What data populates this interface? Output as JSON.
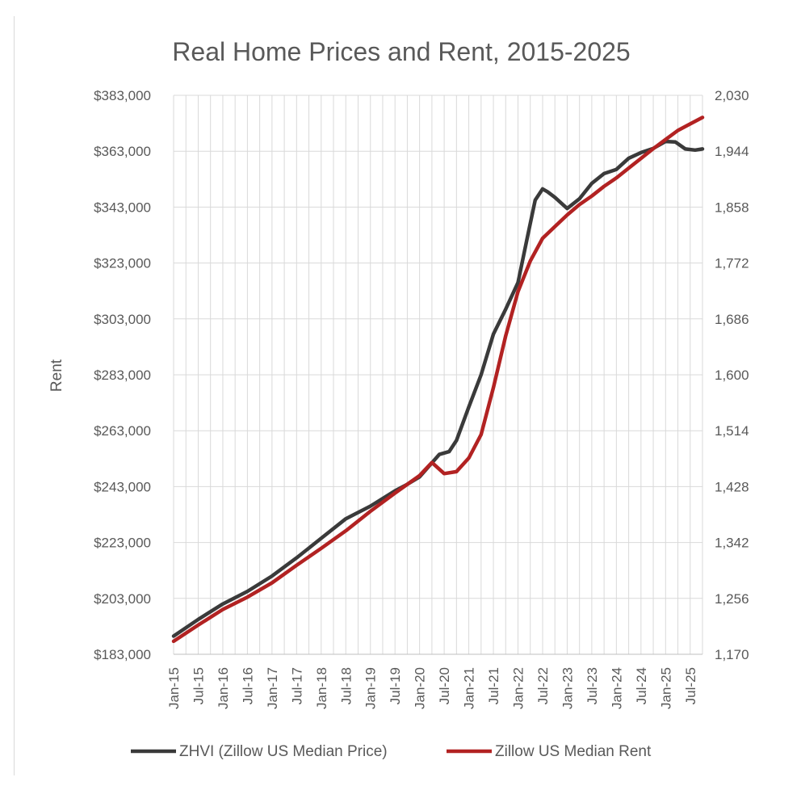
{
  "chart_data": {
    "type": "line",
    "title": "Real Home Prices and Rent, 2015-2025",
    "ylabel": "Rent",
    "y_left": {
      "min": 183000,
      "max": 383000,
      "ticks": [
        183000,
        203000,
        223000,
        243000,
        263000,
        283000,
        303000,
        323000,
        343000,
        363000,
        383000
      ],
      "tick_labels": [
        "$183,000",
        "$203,000",
        "$223,000",
        "$243,000",
        "$263,000",
        "$283,000",
        "$303,000",
        "$323,000",
        "$343,000",
        "$363,000",
        "$383,000"
      ]
    },
    "y_right": {
      "min": 1170,
      "max": 2030,
      "ticks": [
        1170,
        1256,
        1342,
        1428,
        1514,
        1600,
        1686,
        1772,
        1858,
        1944,
        2030
      ],
      "tick_labels": [
        "1,170",
        "1,256",
        "1,342",
        "1,428",
        "1,514",
        "1,600",
        "1,686",
        "1,772",
        "1,858",
        "1,944",
        "2,030"
      ]
    },
    "x_axis": {
      "start": 2015.0,
      "end": 2025.75,
      "tick_positions": [
        2015.0,
        2015.5,
        2016.0,
        2016.5,
        2017.0,
        2017.5,
        2018.0,
        2018.5,
        2019.0,
        2019.5,
        2020.0,
        2020.5,
        2021.0,
        2021.5,
        2022.0,
        2022.5,
        2023.0,
        2023.5,
        2024.0,
        2024.5,
        2025.0,
        2025.5
      ],
      "tick_labels": [
        "Jan-15",
        "Jul-15",
        "Jan-16",
        "Jul-16",
        "Jan-17",
        "Jul-17",
        "Jan-18",
        "Jul-18",
        "Jan-19",
        "Jul-19",
        "Jan-20",
        "Jul-20",
        "Jan-21",
        "Jul-21",
        "Jan-22",
        "Jul-22",
        "Jan-23",
        "Jul-23",
        "Jan-24",
        "Jul-24",
        "Jan-25",
        "Jul-25"
      ]
    },
    "grid": true,
    "legend_position": "bottom",
    "series": [
      {
        "name": "ZHVI (Zillow US Median Price)",
        "axis": "left",
        "color": "#3a3a3a",
        "points": [
          [
            2015.0,
            189500
          ],
          [
            2015.5,
            195500
          ],
          [
            2016.0,
            201000
          ],
          [
            2016.5,
            205500
          ],
          [
            2017.0,
            211000
          ],
          [
            2017.5,
            217500
          ],
          [
            2018.0,
            224500
          ],
          [
            2018.5,
            231500
          ],
          [
            2019.0,
            236000
          ],
          [
            2019.5,
            241500
          ],
          [
            2019.75,
            243800
          ],
          [
            2020.0,
            246500
          ],
          [
            2020.25,
            251500
          ],
          [
            2020.4,
            254500
          ],
          [
            2020.6,
            255500
          ],
          [
            2020.75,
            259500
          ],
          [
            2021.0,
            271500
          ],
          [
            2021.25,
            283000
          ],
          [
            2021.5,
            297500
          ],
          [
            2021.75,
            306500
          ],
          [
            2022.0,
            316000
          ],
          [
            2022.2,
            333000
          ],
          [
            2022.35,
            345500
          ],
          [
            2022.5,
            349500
          ],
          [
            2022.6,
            348500
          ],
          [
            2022.75,
            346500
          ],
          [
            2023.0,
            342500
          ],
          [
            2023.25,
            346000
          ],
          [
            2023.5,
            351500
          ],
          [
            2023.75,
            355000
          ],
          [
            2024.0,
            356500
          ],
          [
            2024.25,
            360500
          ],
          [
            2024.5,
            362500
          ],
          [
            2024.75,
            364000
          ],
          [
            2025.0,
            366500
          ],
          [
            2025.2,
            366300
          ],
          [
            2025.4,
            363800
          ],
          [
            2025.6,
            363400
          ],
          [
            2025.75,
            363800
          ]
        ]
      },
      {
        "name": "Zillow US Median Rent",
        "axis": "right",
        "color": "#b22222",
        "points": [
          [
            2015.0,
            1190
          ],
          [
            2015.5,
            1215
          ],
          [
            2016.0,
            1239
          ],
          [
            2016.5,
            1258
          ],
          [
            2017.0,
            1280
          ],
          [
            2017.5,
            1307
          ],
          [
            2018.0,
            1333
          ],
          [
            2018.5,
            1360
          ],
          [
            2019.0,
            1390
          ],
          [
            2019.5,
            1418
          ],
          [
            2020.0,
            1445
          ],
          [
            2020.25,
            1465
          ],
          [
            2020.5,
            1448
          ],
          [
            2020.75,
            1451
          ],
          [
            2021.0,
            1472
          ],
          [
            2021.25,
            1508
          ],
          [
            2021.5,
            1580
          ],
          [
            2021.75,
            1660
          ],
          [
            2022.0,
            1728
          ],
          [
            2022.25,
            1775
          ],
          [
            2022.5,
            1810
          ],
          [
            2022.75,
            1828
          ],
          [
            2023.0,
            1846
          ],
          [
            2023.25,
            1862
          ],
          [
            2023.5,
            1875
          ],
          [
            2023.75,
            1890
          ],
          [
            2024.0,
            1903
          ],
          [
            2024.25,
            1918
          ],
          [
            2024.5,
            1933
          ],
          [
            2024.75,
            1948
          ],
          [
            2025.0,
            1962
          ],
          [
            2025.25,
            1976
          ],
          [
            2025.5,
            1986
          ],
          [
            2025.75,
            1996
          ]
        ]
      }
    ]
  }
}
